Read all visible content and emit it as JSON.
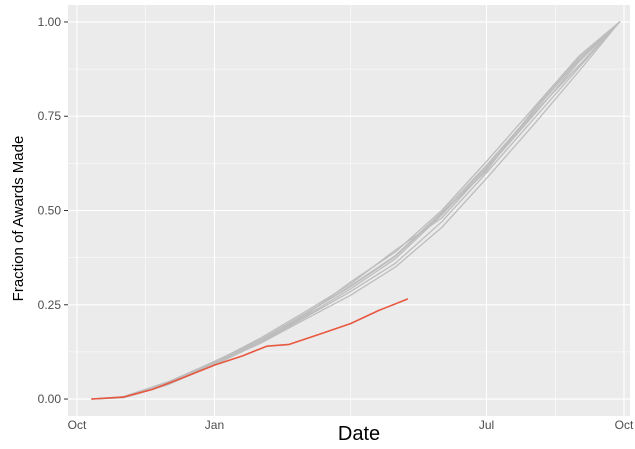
{
  "chart_data": {
    "type": "line",
    "title": "",
    "xlabel": "Date",
    "ylabel": "Fraction of Awards Made",
    "x_axis": {
      "type": "date",
      "range": [
        "2015-09-25",
        "2016-10-05"
      ],
      "ticks": [
        {
          "value": "2015-10-01",
          "label": "Oct"
        },
        {
          "value": "2016-01-01",
          "label": "Jan"
        },
        {
          "value": "2016-07-01",
          "label": "Jul"
        },
        {
          "value": "2016-10-01",
          "label": "Oct"
        }
      ]
    },
    "y_axis": {
      "range": [
        -0.045,
        1.045
      ],
      "ticks": [
        {
          "value": 0.0,
          "label": "0.00"
        },
        {
          "value": 0.25,
          "label": "0.25"
        },
        {
          "value": 0.5,
          "label": "0.50"
        },
        {
          "value": 0.75,
          "label": "0.75"
        },
        {
          "value": 1.0,
          "label": "1.00"
        }
      ]
    },
    "grid": true,
    "legend": "none",
    "colors": {
      "panel": "#ebebeb",
      "grid": "#ffffff",
      "history": "#bdbdbd",
      "current": "#e8573f"
    },
    "series": [
      {
        "color": "#bdbdbd",
        "x": [
          "2015-10-11",
          "2015-11-01",
          "2015-12-01",
          "2016-01-01",
          "2016-02-01",
          "2016-03-01",
          "2016-04-01",
          "2016-05-01",
          "2016-06-01",
          "2016-07-01",
          "2016-08-01",
          "2016-09-01",
          "2016-09-28"
        ],
        "y": [
          0,
          0.006,
          0.045,
          0.1,
          0.158,
          0.225,
          0.3,
          0.38,
          0.495,
          0.62,
          0.76,
          0.9,
          1.0
        ]
      },
      {
        "color": "#bdbdbd",
        "x": [
          "2015-10-11",
          "2015-11-01",
          "2015-12-01",
          "2016-01-01",
          "2016-02-01",
          "2016-03-01",
          "2016-04-01",
          "2016-05-01",
          "2016-06-01",
          "2016-07-01",
          "2016-08-01",
          "2016-09-01",
          "2016-09-28"
        ],
        "y": [
          0,
          0.004,
          0.04,
          0.09,
          0.15,
          0.215,
          0.285,
          0.36,
          0.47,
          0.6,
          0.74,
          0.88,
          1.0
        ]
      },
      {
        "color": "#bdbdbd",
        "x": [
          "2015-10-11",
          "2015-11-01",
          "2015-12-01",
          "2016-01-01",
          "2016-02-01",
          "2016-03-01",
          "2016-04-01",
          "2016-05-01",
          "2016-06-01",
          "2016-07-01",
          "2016-08-01",
          "2016-09-01",
          "2016-09-28"
        ],
        "y": [
          0,
          0.005,
          0.042,
          0.095,
          0.155,
          0.22,
          0.31,
          0.39,
          0.5,
          0.63,
          0.77,
          0.91,
          1.0
        ]
      },
      {
        "color": "#bdbdbd",
        "x": [
          "2015-10-11",
          "2015-11-01",
          "2015-12-01",
          "2016-01-01",
          "2016-02-01",
          "2016-03-01",
          "2016-04-01",
          "2016-05-01",
          "2016-06-01",
          "2016-07-01",
          "2016-08-01",
          "2016-09-01",
          "2016-09-28"
        ],
        "y": [
          0,
          0.003,
          0.038,
          0.092,
          0.148,
          0.21,
          0.275,
          0.35,
          0.455,
          0.585,
          0.725,
          0.87,
          1.0
        ]
      },
      {
        "color": "#bdbdbd",
        "x": [
          "2015-10-11",
          "2015-11-01",
          "2015-12-01",
          "2016-01-01",
          "2016-02-01",
          "2016-03-01",
          "2016-04-01",
          "2016-05-01",
          "2016-06-01",
          "2016-07-01",
          "2016-08-01",
          "2016-09-01",
          "2016-09-28"
        ],
        "y": [
          0,
          0.006,
          0.046,
          0.098,
          0.162,
          0.23,
          0.305,
          0.395,
          0.48,
          0.61,
          0.75,
          0.895,
          1.0
        ]
      },
      {
        "color": "#bdbdbd",
        "x": [
          "2015-10-11",
          "2015-11-01",
          "2015-12-01",
          "2016-01-01",
          "2016-02-01",
          "2016-03-01",
          "2016-04-01",
          "2016-05-01",
          "2016-06-01",
          "2016-07-01",
          "2016-08-01",
          "2016-09-01",
          "2016-09-28"
        ],
        "y": [
          0,
          0.004,
          0.041,
          0.093,
          0.152,
          0.218,
          0.292,
          0.372,
          0.488,
          0.615,
          0.755,
          0.885,
          1.0
        ]
      },
      {
        "color": "#bdbdbd",
        "x": [
          "2015-10-11",
          "2015-11-01",
          "2015-12-01",
          "2016-01-01",
          "2016-02-01",
          "2016-03-01",
          "2016-04-01",
          "2016-05-01",
          "2016-06-01",
          "2016-07-01",
          "2016-08-01",
          "2016-09-01",
          "2016-09-28"
        ],
        "y": [
          0,
          0.005,
          0.044,
          0.097,
          0.156,
          0.224,
          0.298,
          0.378,
          0.492,
          0.605,
          0.765,
          0.905,
          1.0
        ]
      },
      {
        "color": "#e8573f",
        "x": [
          "2015-10-11",
          "2015-11-01",
          "2015-11-20",
          "2015-12-10",
          "2016-01-01",
          "2016-01-20",
          "2016-02-05",
          "2016-02-20",
          "2016-03-10",
          "2016-04-01",
          "2016-04-20",
          "2016-05-09"
        ],
        "y": [
          0,
          0.005,
          0.025,
          0.055,
          0.09,
          0.115,
          0.14,
          0.145,
          0.17,
          0.2,
          0.235,
          0.265
        ]
      }
    ]
  }
}
